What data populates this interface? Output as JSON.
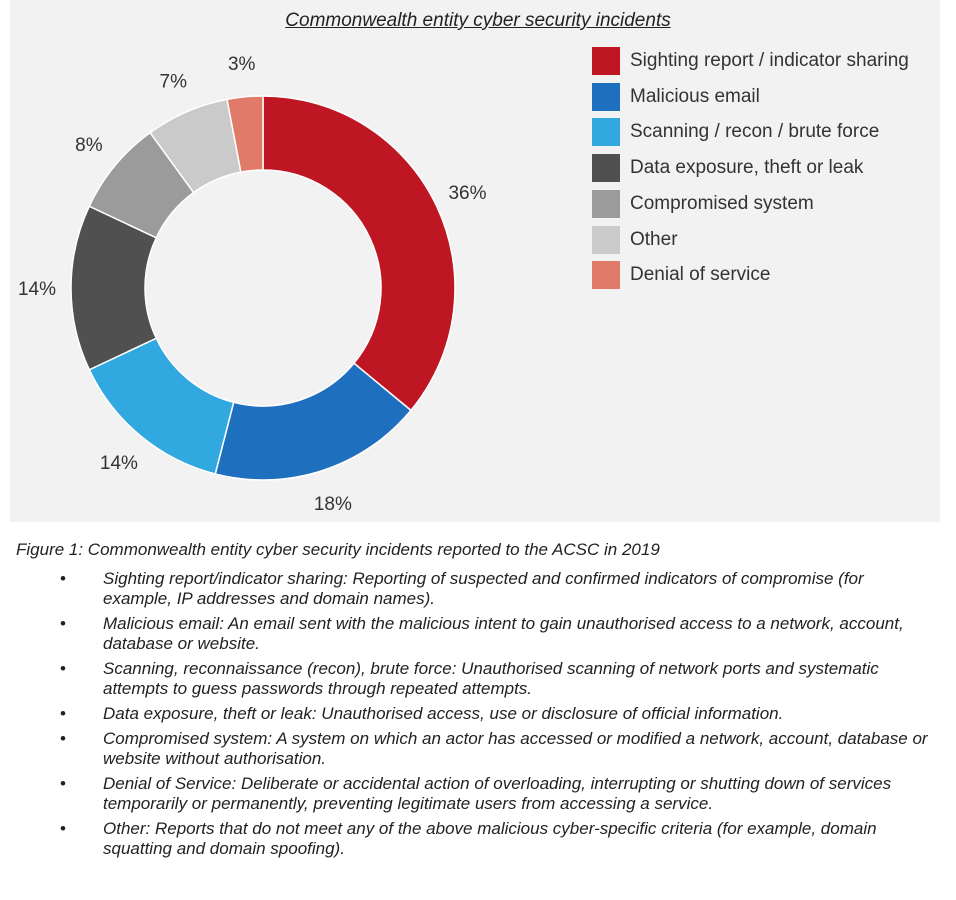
{
  "chart_data": {
    "type": "pie",
    "donut": true,
    "title": "Commonwealth entity cyber security incidents",
    "categories": [
      "Sighting report / indicator sharing",
      "Malicious email",
      "Scanning / recon / brute force",
      "Data exposure, theft or leak",
      "Compromised system",
      "Other",
      "Denial of service"
    ],
    "values": [
      36,
      18,
      14,
      14,
      8,
      7,
      3
    ],
    "value_labels": [
      "36%",
      "18%",
      "14%",
      "14%",
      "8%",
      "7%",
      "3%"
    ],
    "colors": [
      "#be1622",
      "#1f6fbf",
      "#32a8e0",
      "#505050",
      "#9b9b9b",
      "#cacaca",
      "#e07b6a"
    ],
    "legend_placement": "right"
  },
  "caption": "Figure 1: Commonwealth entity cyber security incidents reported to the ACSC in 2019",
  "bullet_symbol": "•",
  "definitions": [
    "Sighting report/indicator sharing: Reporting of suspected and confirmed indicators of compromise (for example, IP addresses and domain names).",
    "Malicious email: An email sent with the malicious intent to gain unauthorised access to a network, account, database or website.",
    "Scanning, reconnaissance (recon), brute force: Unauthorised scanning of network ports and systematic attempts to guess passwords through repeated attempts.",
    "Data exposure, theft or leak: Unauthorised access, use or disclosure of official information.",
    "Compromised system: A system on which an actor has accessed or modified a network, account, database or website without authorisation.",
    "Denial of Service: Deliberate or accidental action of overloading, interrupting or shutting down of services temporarily or permanently, preventing legitimate users from accessing a service.",
    "Other: Reports that do not meet any of the above malicious cyber-specific criteria (for example, domain squatting and domain spoofing)."
  ]
}
